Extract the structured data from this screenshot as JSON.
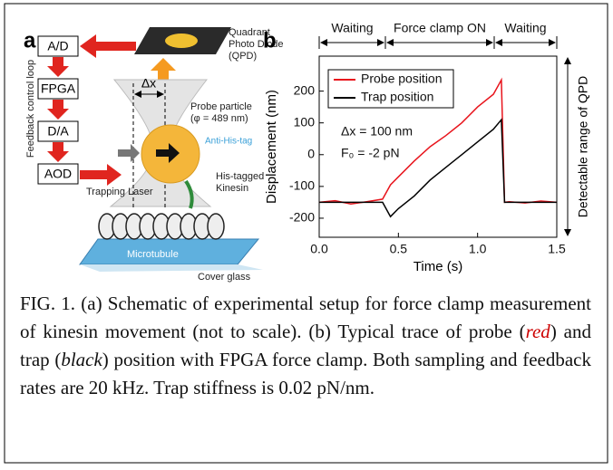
{
  "panel_a": {
    "label": "a",
    "boxes": [
      "A/D",
      "FPGA",
      "D/A",
      "AOD"
    ],
    "loop_label": "Feedback control loop",
    "qpd": [
      "Quadrant",
      "Photo Diode",
      "(QPD)"
    ],
    "delta_x": "Δx",
    "probe": [
      "Probe particle",
      "(φ = 489 nm)"
    ],
    "anti_his": "Anti-His-tag",
    "kinesin": [
      "His-tagged",
      "Kinesin"
    ],
    "laser": "Trapping Laser",
    "microtubule": "Microtubule",
    "cover_glass": "Cover glass"
  },
  "chart_data": {
    "type": "line",
    "panel_label": "b",
    "xlabel": "Time (s)",
    "ylabel": "Displacement (nm)",
    "right_label": "Detectable range of QPD",
    "phases": [
      "Waiting",
      "Force clamp ON",
      "Waiting"
    ],
    "annotations": [
      "Δx = 100 nm",
      "F₀ = -2 pN"
    ],
    "x": [
      0,
      0.1,
      0.2,
      0.3,
      0.4,
      0.45,
      0.5,
      0.6,
      0.7,
      0.8,
      0.9,
      1.0,
      1.1,
      1.15,
      1.17,
      1.2,
      1.3,
      1.4,
      1.5
    ],
    "series": [
      {
        "name": "Probe position",
        "color": "#e8141c",
        "values": [
          -150,
          -145,
          -155,
          -148,
          -140,
          -95,
          -70,
          -20,
          25,
          60,
          100,
          150,
          190,
          235,
          -150,
          -148,
          -152,
          -146,
          -150
        ]
      },
      {
        "name": "Trap position",
        "color": "#000000",
        "values": [
          -150,
          -150,
          -150,
          -150,
          -150,
          -195,
          -170,
          -130,
          -80,
          -40,
          0,
          40,
          80,
          110,
          -150,
          -150,
          -150,
          -150,
          -150
        ]
      }
    ],
    "xlim": [
      0,
      1.5
    ],
    "ylim": [
      -260,
      310
    ],
    "xticks": [
      {
        "value": 0,
        "label": "0.0"
      },
      0.5,
      {
        "value": 1,
        "label": "1.0"
      },
      1.5
    ],
    "yticks": [
      -200,
      -100,
      0,
      100,
      200
    ],
    "legend": "upper-left"
  },
  "caption": [
    "FIG. 1. (a) Schematic of experimental setup for force clamp measurement of kinesin movement (not to scale). (b) Typical trace of probe (",
    "red",
    ") and trap (",
    "black",
    ") position with FPGA force clamp. Both sampling and feedback rates are 20 kHz. Trap stiffness is 0.02 pN/nm."
  ]
}
